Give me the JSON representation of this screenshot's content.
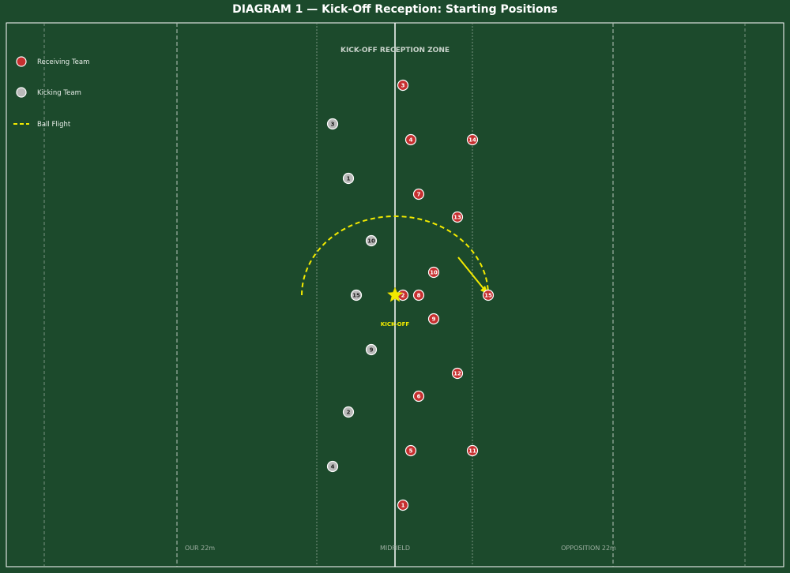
{
  "title": "DIAGRAM 1 — Kick-Off Reception: Starting Positions",
  "zone_label": "KICK-OFF RECEPTION ZONE",
  "kickoff_label": "KICK-OFF",
  "field_labels": {
    "our22": "OUR 22m",
    "midfield": "MIDFIELD",
    "opp22": "OPPOSITION 22m"
  },
  "legend": {
    "receiving": "Receiving Team",
    "kicking": "Kicking Team",
    "ball": "Ball Flight"
  },
  "colors": {
    "field": "#1c4a2c",
    "receiving": "#c62f2f",
    "kicking": "#b9b9b9",
    "ball": "#f2ea00",
    "line": "#ffffff"
  },
  "receiving_team": [
    {
      "number": "3"
    },
    {
      "number": "4"
    },
    {
      "number": "14"
    },
    {
      "number": "7"
    },
    {
      "number": "13"
    },
    {
      "number": "10"
    },
    {
      "number": "2"
    },
    {
      "number": "8"
    },
    {
      "number": "15"
    },
    {
      "number": "9"
    },
    {
      "number": "12"
    },
    {
      "number": "6"
    },
    {
      "number": "5"
    },
    {
      "number": "11"
    },
    {
      "number": "1"
    }
  ],
  "kicking_team": [
    {
      "number": "3"
    },
    {
      "number": "1"
    },
    {
      "number": "10"
    },
    {
      "number": "15"
    },
    {
      "number": "9"
    },
    {
      "number": "2"
    },
    {
      "number": "4"
    }
  ]
}
